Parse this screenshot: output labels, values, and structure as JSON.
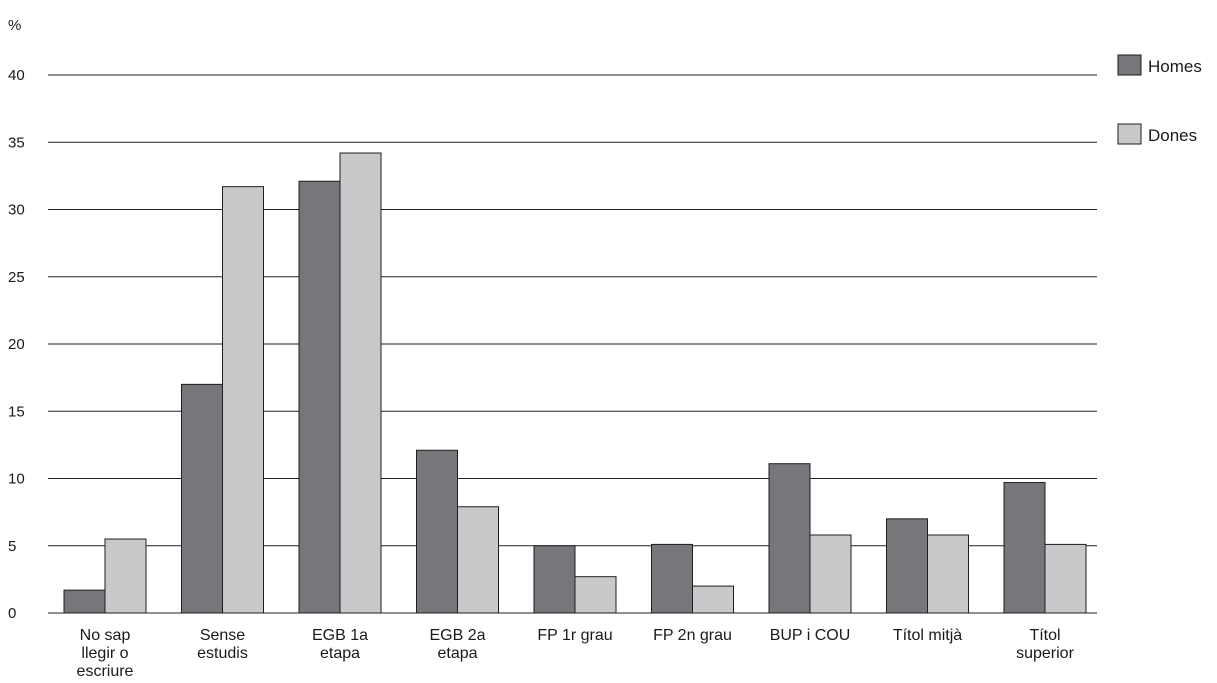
{
  "chart_data": {
    "type": "bar",
    "y_unit": "%",
    "categories": [
      [
        "No sap",
        "llegir o",
        "escriure"
      ],
      [
        "Sense",
        "estudis"
      ],
      [
        "EGB 1a",
        "etapa"
      ],
      [
        "EGB 2a",
        "etapa"
      ],
      [
        "FP 1r grau"
      ],
      [
        "FP 2n grau"
      ],
      [
        "BUP i COU"
      ],
      [
        "Títol mitjà"
      ],
      [
        "Títol",
        "superior"
      ]
    ],
    "series": [
      {
        "name": "Homes",
        "color": "#76777b",
        "values": [
          1.7,
          17.0,
          32.1,
          12.1,
          5.0,
          5.1,
          11.1,
          7.0,
          9.7
        ]
      },
      {
        "name": "Dones",
        "color": "#c8c9cb",
        "values": [
          5.5,
          31.7,
          34.2,
          7.9,
          2.7,
          2.0,
          5.8,
          5.8,
          5.1
        ]
      }
    ],
    "ylim": [
      0,
      40
    ],
    "yticks": [
      0,
      5,
      10,
      15,
      20,
      25,
      30,
      35,
      40
    ],
    "grid": true,
    "legend_position": "top-right"
  }
}
